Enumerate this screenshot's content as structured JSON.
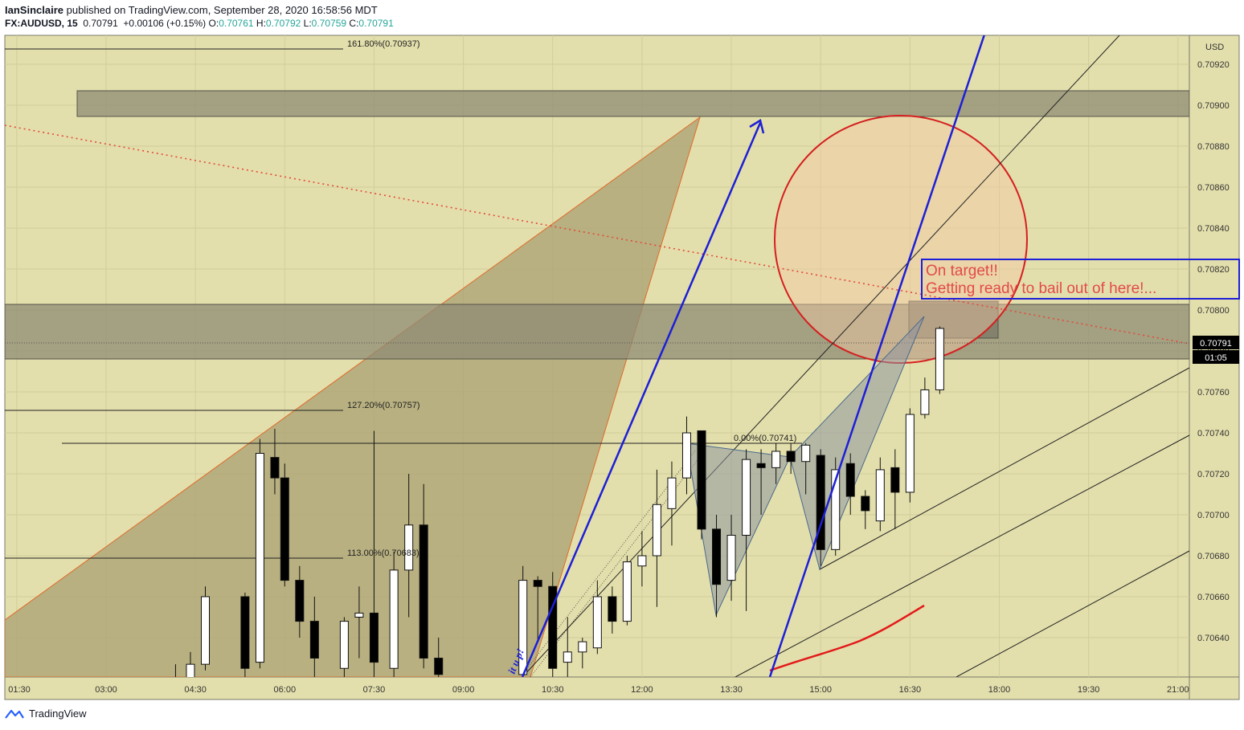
{
  "header": {
    "author": "IanSinclaire",
    "published_text": "published on TradingView.com, September 28, 2020 16:58:56 MDT",
    "symbol": "FX:AUDUSD, 15",
    "last": "0.70791",
    "change": "+0.00106 (+0.15%)",
    "ohlc": [
      {
        "k": "O:",
        "v": "0.70761"
      },
      {
        "k": "H:",
        "v": "0.70792"
      },
      {
        "k": "L:",
        "v": "0.70759"
      },
      {
        "k": "C:",
        "v": "0.70791"
      }
    ]
  },
  "footer": {
    "brand": "TradingView"
  },
  "colors": {
    "background": "#e3dfac",
    "up": "#ffffff",
    "down": "#000000",
    "blue": "#1d1fd6",
    "red": "#e31a1a",
    "orange_fill": "#a9a071",
    "zone_fill": "#8f8b74"
  },
  "chart_data": {
    "type": "candlestick",
    "currency": "USD",
    "y_ticks": [
      "0.70640",
      "0.70660",
      "0.70680",
      "0.70700",
      "0.70720",
      "0.70740",
      "0.70760",
      "0.70780",
      "0.70800",
      "0.70820",
      "0.70840",
      "0.70860",
      "0.70880",
      "0.70900",
      "0.70920"
    ],
    "x_ticks": [
      "01:30",
      "03:00",
      "04:30",
      "06:00",
      "07:30",
      "09:00",
      "10:30",
      "12:00",
      "13:30",
      "15:00",
      "16:30",
      "18:00",
      "19:30",
      "21:00"
    ],
    "price_label": "0.70791",
    "countdown_label": "01:05",
    "fib_labels": [
      "161.80%(0.70937)",
      "127.20%(0.70757)",
      "113.00%(0.70683)",
      "0.00%(0.70741)"
    ],
    "annotation": [
      "On target!!",
      "Getting ready to bail out of here!..."
    ],
    "rotated_text": "it u p!",
    "candles": [
      {
        "t": "04:10",
        "o": 0.7062,
        "h": 0.70627,
        "l": 0.70618,
        "c": 0.7062
      },
      {
        "t": "04:25",
        "o": 0.7062,
        "h": 0.70633,
        "l": 0.70615,
        "c": 0.70627
      },
      {
        "t": "04:40",
        "o": 0.70627,
        "h": 0.70665,
        "l": 0.70624,
        "c": 0.7066
      },
      {
        "t": "05:20",
        "o": 0.7066,
        "h": 0.70662,
        "l": 0.7062,
        "c": 0.70625
      },
      {
        "t": "05:35",
        "o": 0.70628,
        "h": 0.70737,
        "l": 0.70625,
        "c": 0.7073
      },
      {
        "t": "05:50",
        "o": 0.70728,
        "h": 0.70742,
        "l": 0.7071,
        "c": 0.70718
      },
      {
        "t": "06:00",
        "o": 0.70718,
        "h": 0.70725,
        "l": 0.70665,
        "c": 0.70668
      },
      {
        "t": "06:15",
        "o": 0.70668,
        "h": 0.70675,
        "l": 0.7064,
        "c": 0.70648
      },
      {
        "t": "06:30",
        "o": 0.70648,
        "h": 0.7066,
        "l": 0.7062,
        "c": 0.7063
      },
      {
        "t": "07:00",
        "o": 0.70625,
        "h": 0.7065,
        "l": 0.7062,
        "c": 0.70648
      },
      {
        "t": "07:15",
        "o": 0.7065,
        "h": 0.70665,
        "l": 0.7063,
        "c": 0.70652
      },
      {
        "t": "07:30",
        "o": 0.70652,
        "h": 0.70741,
        "l": 0.7062,
        "c": 0.70628
      },
      {
        "t": "07:50",
        "o": 0.70625,
        "h": 0.70682,
        "l": 0.7062,
        "c": 0.70673
      },
      {
        "t": "08:05",
        "o": 0.70673,
        "h": 0.7072,
        "l": 0.7065,
        "c": 0.70695
      },
      {
        "t": "08:20",
        "o": 0.70695,
        "h": 0.70715,
        "l": 0.70625,
        "c": 0.7063
      },
      {
        "t": "08:35",
        "o": 0.7063,
        "h": 0.7064,
        "l": 0.7062,
        "c": 0.70622
      },
      {
        "t": "10:00",
        "o": 0.70622,
        "h": 0.70675,
        "l": 0.70618,
        "c": 0.70668
      },
      {
        "t": "10:15",
        "o": 0.70668,
        "h": 0.7067,
        "l": 0.70638,
        "c": 0.70665
      },
      {
        "t": "10:30",
        "o": 0.70665,
        "h": 0.70672,
        "l": 0.70618,
        "c": 0.70625
      },
      {
        "t": "10:45",
        "o": 0.70628,
        "h": 0.7065,
        "l": 0.7062,
        "c": 0.70633
      },
      {
        "t": "11:00",
        "o": 0.70633,
        "h": 0.7064,
        "l": 0.70625,
        "c": 0.70638
      },
      {
        "t": "11:15",
        "o": 0.70635,
        "h": 0.70668,
        "l": 0.70632,
        "c": 0.7066
      },
      {
        "t": "11:30",
        "o": 0.7066,
        "h": 0.70665,
        "l": 0.70642,
        "c": 0.70648
      },
      {
        "t": "11:45",
        "o": 0.70648,
        "h": 0.7068,
        "l": 0.70646,
        "c": 0.70677
      },
      {
        "t": "12:00",
        "o": 0.70675,
        "h": 0.70692,
        "l": 0.70665,
        "c": 0.7068
      },
      {
        "t": "12:15",
        "o": 0.7068,
        "h": 0.70722,
        "l": 0.70655,
        "c": 0.70705
      },
      {
        "t": "12:30",
        "o": 0.70703,
        "h": 0.70726,
        "l": 0.70685,
        "c": 0.70718
      },
      {
        "t": "12:45",
        "o": 0.70718,
        "h": 0.70748,
        "l": 0.7071,
        "c": 0.7074
      },
      {
        "t": "13:00",
        "o": 0.70741,
        "h": 0.70741,
        "l": 0.70688,
        "c": 0.70693
      },
      {
        "t": "13:15",
        "o": 0.70693,
        "h": 0.707,
        "l": 0.7065,
        "c": 0.70666
      },
      {
        "t": "13:30",
        "o": 0.70668,
        "h": 0.707,
        "l": 0.70658,
        "c": 0.7069
      },
      {
        "t": "13:45",
        "o": 0.7069,
        "h": 0.70732,
        "l": 0.70653,
        "c": 0.70727
      },
      {
        "t": "14:00",
        "o": 0.70725,
        "h": 0.70732,
        "l": 0.707,
        "c": 0.70723
      },
      {
        "t": "14:15",
        "o": 0.70723,
        "h": 0.70735,
        "l": 0.70715,
        "c": 0.70731
      },
      {
        "t": "14:30",
        "o": 0.70731,
        "h": 0.70735,
        "l": 0.7072,
        "c": 0.70726
      },
      {
        "t": "14:45",
        "o": 0.70726,
        "h": 0.70735,
        "l": 0.7071,
        "c": 0.70734
      },
      {
        "t": "15:00",
        "o": 0.70729,
        "h": 0.70732,
        "l": 0.70675,
        "c": 0.70683
      },
      {
        "t": "15:15",
        "o": 0.70683,
        "h": 0.70728,
        "l": 0.7068,
        "c": 0.70722
      },
      {
        "t": "15:30",
        "o": 0.70725,
        "h": 0.7073,
        "l": 0.707,
        "c": 0.70709
      },
      {
        "t": "15:45",
        "o": 0.70709,
        "h": 0.70712,
        "l": 0.70693,
        "c": 0.70702
      },
      {
        "t": "16:00",
        "o": 0.70697,
        "h": 0.70728,
        "l": 0.70692,
        "c": 0.70722
      },
      {
        "t": "16:15",
        "o": 0.70723,
        "h": 0.70732,
        "l": 0.70693,
        "c": 0.70711
      },
      {
        "t": "16:30",
        "o": 0.70711,
        "h": 0.70752,
        "l": 0.70706,
        "c": 0.70749
      },
      {
        "t": "16:45",
        "o": 0.70749,
        "h": 0.70767,
        "l": 0.70747,
        "c": 0.70761
      },
      {
        "t": "17:00",
        "o": 0.70761,
        "h": 0.70792,
        "l": 0.70759,
        "c": 0.70791
      }
    ]
  }
}
